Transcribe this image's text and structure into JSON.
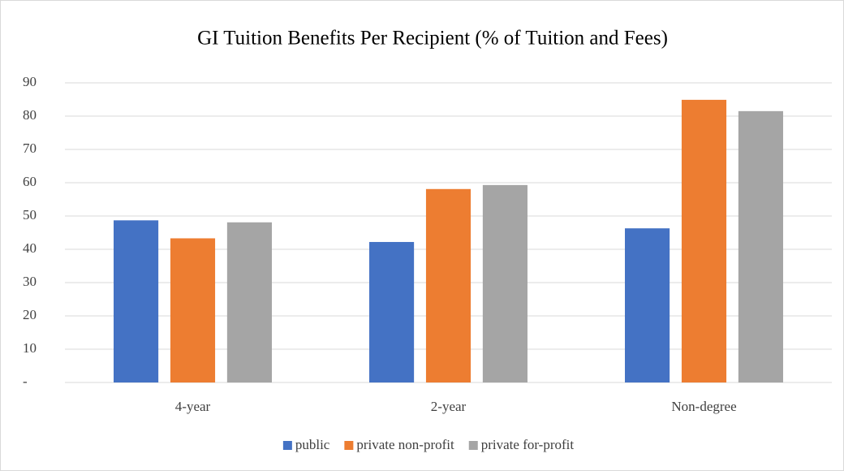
{
  "chart_data": {
    "type": "bar",
    "title": "GI Tuition Benefits Per Recipient (% of Tuition and Fees)",
    "categories": [
      "4-year",
      "2-year",
      "Non-degree"
    ],
    "series": [
      {
        "name": "public",
        "color": "#4472c4",
        "values": [
          48.7,
          42.2,
          46.3
        ]
      },
      {
        "name": "private non-profit",
        "color": "#ed7d31",
        "values": [
          43.3,
          58.1,
          84.9
        ]
      },
      {
        "name": "private for-profit",
        "color": "#a5a5a5",
        "values": [
          48.1,
          59.3,
          81.5
        ]
      }
    ],
    "ylim": [
      0,
      90
    ],
    "yticks": [
      {
        "value": 0,
        "label": "-"
      },
      10,
      20,
      30,
      40,
      50,
      60,
      70,
      80,
      90
    ],
    "grid": true,
    "legend": "bottom"
  }
}
